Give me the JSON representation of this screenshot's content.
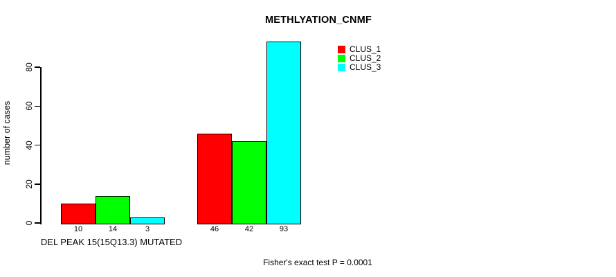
{
  "chart_data": {
    "type": "bar",
    "title": "METHLYATION_CNMF",
    "ylabel": "number of cases",
    "xlabel": "DEL PEAK 15(15Q13.3) MUTATED",
    "annotation": "Fisher's exact test P = 0.0001",
    "categories": [
      "DEL PEAK 15(15Q13.3) MUTATED",
      ""
    ],
    "series": [
      {
        "name": "CLUS_1",
        "color": "#ff0000",
        "values": [
          10,
          46
        ]
      },
      {
        "name": "CLUS_2",
        "color": "#00ff00",
        "values": [
          14,
          42
        ]
      },
      {
        "name": "CLUS_3",
        "color": "#00ffff",
        "values": [
          3,
          93
        ]
      }
    ],
    "bar_value_labels": [
      [
        10,
        14,
        3
      ],
      [
        46,
        42,
        93
      ]
    ],
    "yticks": [
      0,
      20,
      40,
      60,
      80
    ],
    "ylim": [
      0,
      93
    ],
    "grid": false,
    "legend_position": "top-right",
    "axis_color": "#000000",
    "background_color": "#ffffff"
  }
}
